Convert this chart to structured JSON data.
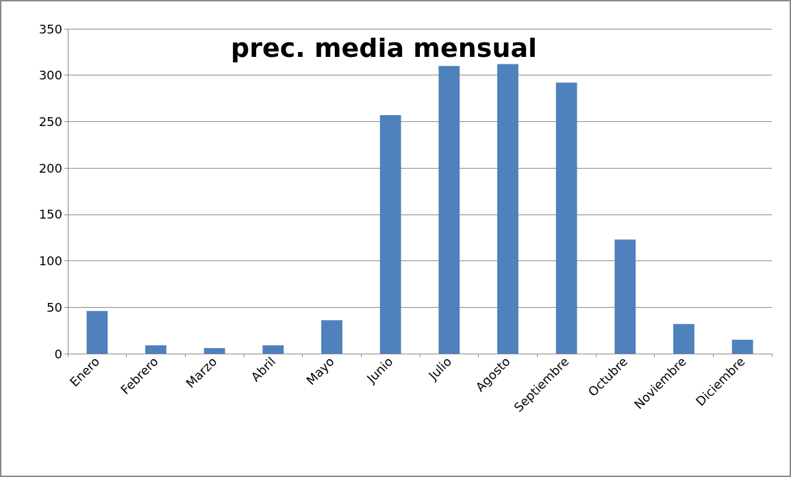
{
  "chart_data": {
    "type": "bar",
    "title": "prec. media mensual",
    "categories": [
      "Enero",
      "Febrero",
      "Marzo",
      "Abril",
      "Mayo",
      "Junio",
      "Julio",
      "Agosto",
      "Septiembre",
      "Octubre",
      "Noviembre",
      "Diciembre"
    ],
    "values": [
      46,
      9,
      6,
      9,
      36,
      257,
      310,
      312,
      292,
      123,
      32,
      15
    ],
    "color": "#4f81bd",
    "ylim": [
      0,
      350
    ],
    "yticks": [
      0,
      50,
      100,
      150,
      200,
      250,
      300,
      350
    ],
    "grid": "y"
  }
}
